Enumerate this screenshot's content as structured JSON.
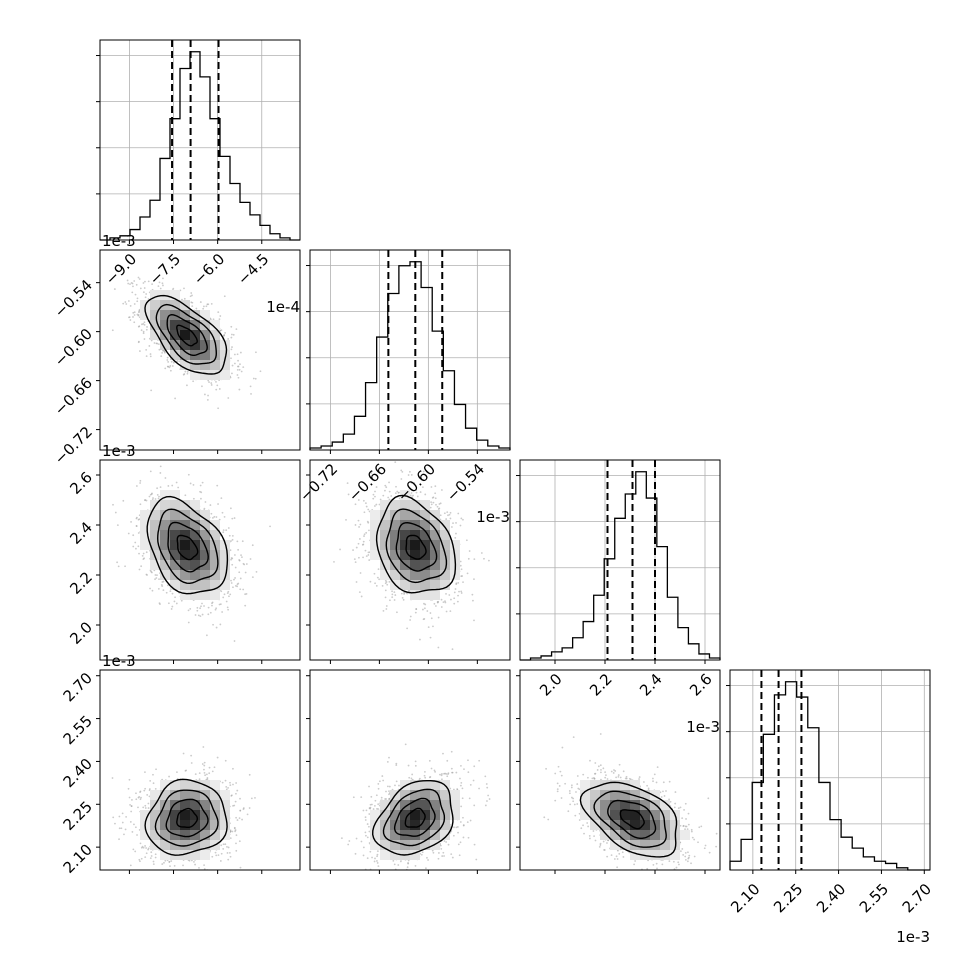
{
  "chart_data": {
    "type": "corner",
    "params": [
      {
        "offset_label": "1e-4",
        "range": [
          -10.0,
          -3.2
        ],
        "ticks": [
          -9.0,
          -7.5,
          -6.0,
          -4.5
        ],
        "tick_labels": [
          "−9.0",
          "−7.5",
          "−6.0",
          "−4.5"
        ],
        "quantiles": [
          -7.55,
          -6.92,
          -5.97
        ],
        "histogram": [
          0,
          1,
          2,
          5,
          11,
          19,
          39,
          58,
          82,
          90,
          78,
          58,
          40,
          27,
          18,
          12,
          7,
          3,
          1,
          0
        ]
      },
      {
        "offset_label": "1e-3",
        "range": [
          -0.745,
          -0.5
        ],
        "ticks": [
          -0.72,
          -0.66,
          -0.6,
          -0.54
        ],
        "tick_labels": [
          "−0.72",
          "−0.66",
          "−0.60",
          "−0.54"
        ],
        "quantiles": [
          -0.649,
          -0.616,
          -0.583
        ],
        "histogram": [
          1,
          2,
          4,
          8,
          17,
          34,
          57,
          79,
          93,
          95,
          82,
          60,
          40,
          23,
          11,
          5,
          2,
          1
        ]
      },
      {
        "offset_label": "1e-3",
        "range": [
          1.86,
          2.66
        ],
        "ticks": [
          2.0,
          2.2,
          2.4,
          2.6
        ],
        "tick_labels": [
          "2.0",
          "2.2",
          "2.4",
          "2.6"
        ],
        "quantiles": [
          2.21,
          2.31,
          2.4
        ],
        "histogram": [
          0,
          1,
          2,
          4,
          6,
          11,
          19,
          32,
          50,
          70,
          82,
          93,
          80,
          56,
          31,
          16,
          8,
          3,
          1
        ]
      },
      {
        "offset_label": "1e-3",
        "range": [
          2.02,
          2.72
        ],
        "ticks": [
          2.1,
          2.25,
          2.4,
          2.55,
          2.7
        ],
        "tick_labels": [
          "2.10",
          "2.25",
          "2.40",
          "2.55",
          "2.70"
        ],
        "quantiles": [
          2.13,
          2.19,
          2.27
        ],
        "histogram": [
          4,
          14,
          40,
          62,
          80,
          86,
          79,
          65,
          40,
          23,
          15,
          10,
          6,
          4,
          3,
          1,
          0,
          0
        ]
      }
    ],
    "pairs": [
      {
        "row": 1,
        "col": 0,
        "center": [
          -7.05,
          -0.605
        ],
        "sigma": [
          0.68,
          0.024
        ],
        "rho": -0.6
      },
      {
        "row": 2,
        "col": 0,
        "center": [
          -7.05,
          2.31
        ],
        "sigma": [
          0.68,
          0.095
        ],
        "rho": -0.35
      },
      {
        "row": 2,
        "col": 1,
        "center": [
          -0.616,
          2.31
        ],
        "sigma": [
          0.024,
          0.095
        ],
        "rho": -0.25
      },
      {
        "row": 3,
        "col": 0,
        "center": [
          -7.05,
          2.2
        ],
        "sigma": [
          0.68,
          0.065
        ],
        "rho": 0.08
      },
      {
        "row": 3,
        "col": 1,
        "center": [
          -0.616,
          2.2
        ],
        "sigma": [
          0.024,
          0.065
        ],
        "rho": 0.3
      },
      {
        "row": 3,
        "col": 2,
        "center": [
          2.31,
          2.2
        ],
        "sigma": [
          0.095,
          0.065
        ],
        "rho": -0.45
      }
    ],
    "grid": true,
    "line_color": "#000000",
    "scatter_color": "#a0a0a0"
  }
}
